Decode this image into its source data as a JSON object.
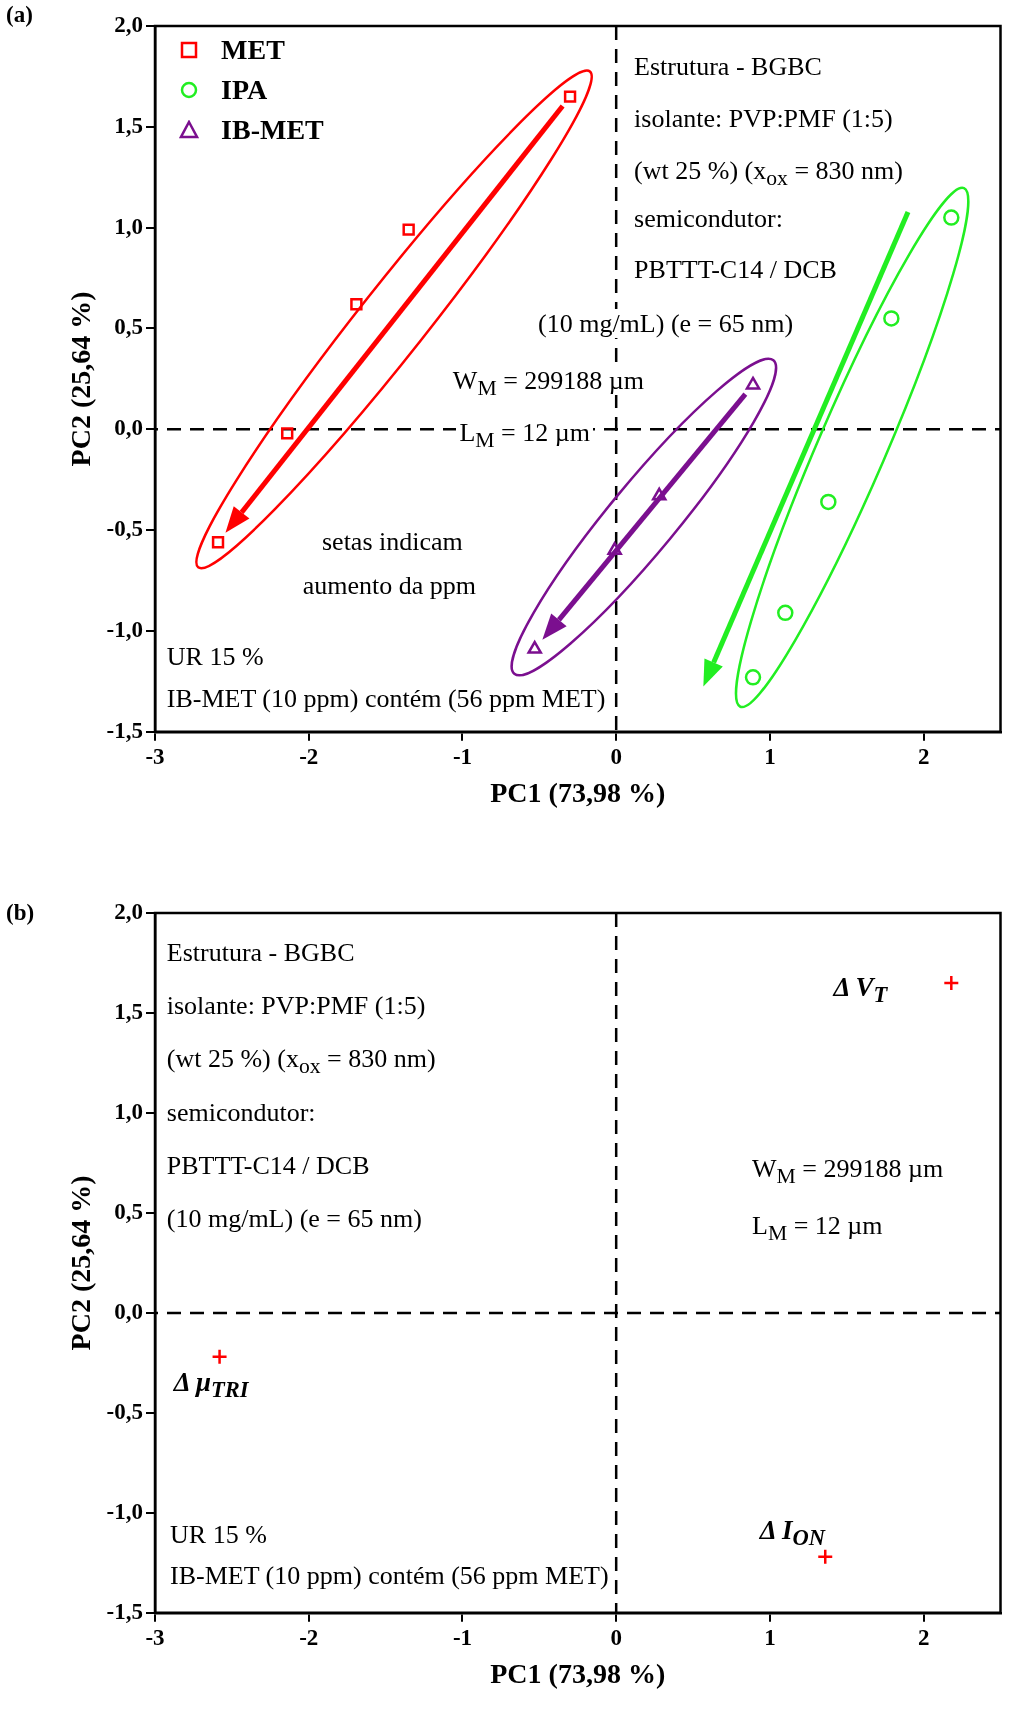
{
  "chart_data": [
    {
      "type": "scatter",
      "title": "(a)",
      "xlabel": "PC1 (73,98 %)",
      "ylabel": "PC2 (25,64 %)",
      "xlim": [
        -3,
        2.5
      ],
      "ylim": [
        -1.5,
        2.0
      ],
      "xticks": [
        -3,
        -2,
        -1,
        0,
        1,
        2
      ],
      "yticks": [
        {
          "value": -1.5,
          "label": "-1,5"
        },
        {
          "value": -1,
          "label": "-1,0"
        },
        {
          "value": -0.5,
          "label": "-0,5"
        },
        {
          "value": 0,
          "label": "0,0"
        },
        {
          "value": 0.5,
          "label": "0,5"
        },
        {
          "value": 1,
          "label": "1,0"
        },
        {
          "value": 1.5,
          "label": "1,5"
        },
        {
          "value": 2,
          "label": "2,0"
        }
      ],
      "grid": false,
      "legend": "top left",
      "series": [
        {
          "name": "MET",
          "color": "#ff0000",
          "marker": "square",
          "x": [
            -2.59,
            -2.14,
            -1.69,
            -1.35,
            -0.3
          ],
          "values": [
            -0.56,
            -0.02,
            0.62,
            0.99,
            1.65
          ]
        },
        {
          "name": "IPA",
          "color": "#22ee22",
          "marker": "circle",
          "x": [
            0.89,
            1.1,
            1.38,
            1.79,
            2.18
          ],
          "values": [
            -1.23,
            -0.91,
            -0.36,
            0.55,
            1.05
          ]
        },
        {
          "name": "IB-MET",
          "color": "#7b0f8f",
          "marker": "triangle",
          "x": [
            -0.53,
            -0.01,
            0.28,
            0.89
          ],
          "values": [
            -1.09,
            -0.6,
            -0.33,
            0.22
          ]
        }
      ],
      "ref_lines": [
        {
          "axis": "x",
          "value": 0,
          "line_style": "dashed"
        },
        {
          "axis": "y",
          "value": 0,
          "line_style": "dashed"
        }
      ],
      "annotations": [
        "Estrutura - BGBC",
        "isolante: PVP:PMF (1:5)",
        "(wt 25 %) (x$_{ox}$ = 830 nm)",
        "semicondutor:",
        "PBTTT-C14 / DCB",
        "(10 mg/mL) (e = 65 nm)",
        "W$_{M}$ = 299188 µm",
        "L$_{M}$ = 12 µm",
        "setas indicam aumento da ppm",
        "UR 15 %",
        "IB-MET (10 ppm) contém (56 ppm MET)"
      ]
    },
    {
      "type": "scatter",
      "title": "(b)",
      "xlabel": "PC1 (73,98 %)",
      "ylabel": "PC2 (25,64 %)",
      "xlim": [
        -3,
        2.5
      ],
      "ylim": [
        -1.5,
        2.0
      ],
      "xticks": [
        -3,
        -2,
        -1,
        0,
        1,
        2
      ],
      "yticks": [
        {
          "value": -1.5,
          "label": "-1,5"
        },
        {
          "value": -1,
          "label": "-1,0"
        },
        {
          "value": -0.5,
          "label": "-0,5"
        },
        {
          "value": 0,
          "label": "0,0"
        },
        {
          "value": 0.5,
          "label": "0,5"
        },
        {
          "value": 1,
          "label": "1,0"
        },
        {
          "value": 1.5,
          "label": "1,5"
        },
        {
          "value": 2,
          "label": "2,0"
        }
      ],
      "grid": false,
      "legend": false,
      "series": [
        {
          "name": "Δ V$_{T}$",
          "color": "#ff0000",
          "marker": "cross",
          "x": [
            2.18
          ],
          "values": [
            1.65
          ]
        },
        {
          "name": "Δ μ$_{TRI}$",
          "color": "#ff0000",
          "marker": "cross",
          "x": [
            -2.58
          ],
          "values": [
            -0.22
          ]
        },
        {
          "name": "Δ I$_{ON}$",
          "color": "#ff0000",
          "marker": "cross",
          "x": [
            1.36
          ],
          "values": [
            -1.22
          ]
        }
      ],
      "ref_lines": [
        {
          "axis": "x",
          "value": 0,
          "line_style": "dashed"
        },
        {
          "axis": "y",
          "value": 0,
          "line_style": "dashed"
        }
      ],
      "annotations": [
        "Estrutura - BGBC",
        "isolante: PVP:PMF (1:5)",
        "(wt 25 %) (x$_{ox}$ = 830 nm)",
        "semicondutor:",
        "PBTTT-C14 / DCB",
        "(10 mg/mL) (e = 65 nm)",
        "W$_{M}$ = 299188 µm",
        "L$_{M}$ = 12 µm",
        "UR 15 %",
        "IB-MET (10 ppm) contém (56 ppm MET)"
      ]
    }
  ]
}
